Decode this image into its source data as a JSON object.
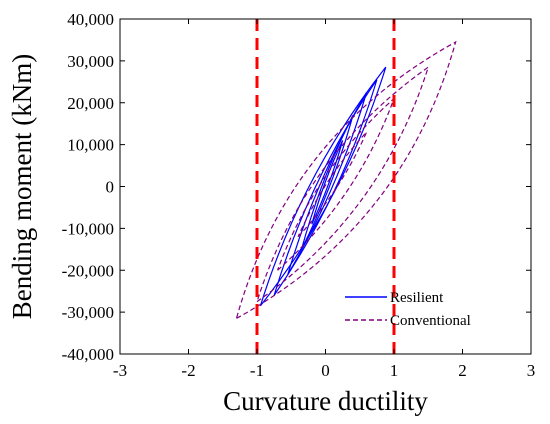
{
  "chart_data": {
    "type": "line",
    "title": "",
    "xlabel": "Curvature ductility",
    "ylabel": "Bending moment (kNm)",
    "xlim": [
      -3,
      3
    ],
    "ylim": [
      -40000,
      40000
    ],
    "x_ticks": [
      -3,
      -2,
      -1,
      0,
      1,
      2,
      3
    ],
    "x_tick_labels": [
      "-3",
      "-2",
      "-1",
      "0",
      "1",
      "2",
      "3"
    ],
    "y_ticks": [
      -40000,
      -30000,
      -20000,
      -10000,
      0,
      10000,
      20000,
      30000,
      40000
    ],
    "y_tick_labels": [
      "-40,000",
      "-30,000",
      "-20,000",
      "-10,000",
      "0",
      "10,000",
      "20,000",
      "30,000",
      "40,000"
    ],
    "grid": false,
    "legend_position": "bottom-right",
    "reference_lines": [
      {
        "axis": "x",
        "value": -1,
        "color": "#ff0000",
        "style": "dashed"
      },
      {
        "axis": "x",
        "value": 1,
        "color": "#ff0000",
        "style": "dashed"
      }
    ],
    "series": [
      {
        "name": "Resilient",
        "color": "#0000ff",
        "style": "solid",
        "loops": [
          {
            "xmin": -0.95,
            "ymin": -28500,
            "xmax": 0.88,
            "ymax": 28500,
            "fill": 0.33
          },
          {
            "xmin": -0.75,
            "ymin": -26000,
            "xmax": 0.75,
            "ymax": 25500,
            "fill": 0.28
          },
          {
            "xmin": -0.55,
            "ymin": -21000,
            "xmax": 0.6,
            "ymax": 22500,
            "fill": 0.22
          },
          {
            "xmin": -0.35,
            "ymin": -15000,
            "xmax": 0.4,
            "ymax": 17000,
            "fill": 0.18
          },
          {
            "xmin": -0.2,
            "ymin": -9000,
            "xmax": 0.25,
            "ymax": 11000,
            "fill": 0.15
          }
        ]
      },
      {
        "name": "Conventional",
        "color": "#800080",
        "style": "dashed",
        "loops": [
          {
            "xmin": -1.3,
            "ymin": -31500,
            "xmax": 1.9,
            "ymax": 34500,
            "fill": 0.75
          },
          {
            "xmin": -1.0,
            "ymin": -27500,
            "xmax": 1.5,
            "ymax": 28500,
            "fill": 0.6
          },
          {
            "xmin": -0.7,
            "ymin": -20000,
            "xmax": 1.0,
            "ymax": 21000,
            "fill": 0.45
          },
          {
            "xmin": -0.4,
            "ymin": -12000,
            "xmax": 0.6,
            "ymax": 13000,
            "fill": 0.3
          }
        ]
      }
    ]
  }
}
